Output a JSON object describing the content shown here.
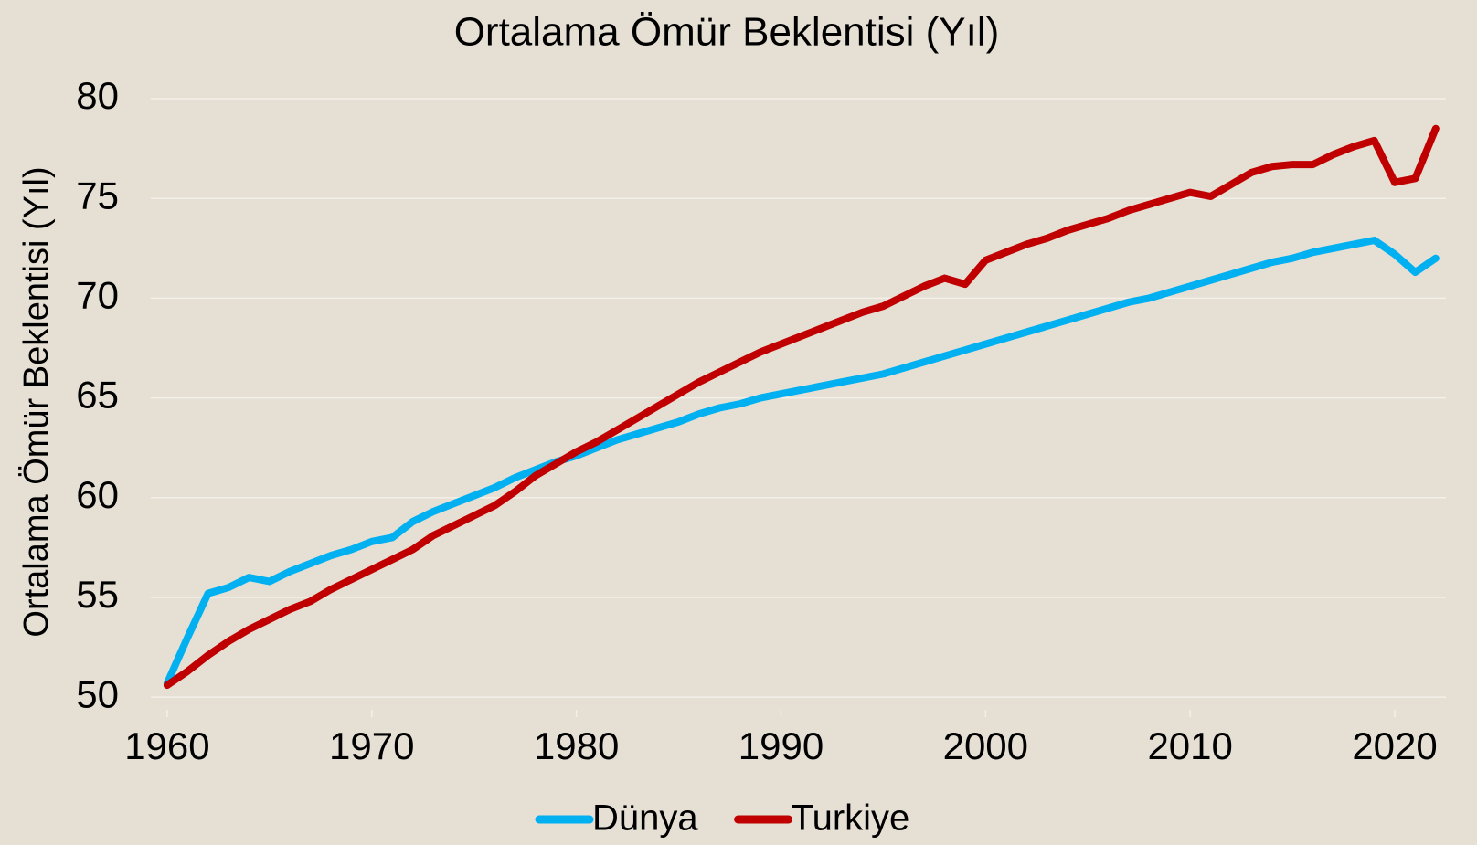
{
  "chart_data": {
    "type": "line",
    "title": "Ortalama Ömür Beklentisi (Yıl)",
    "y_label": "Ortalama Ömür Beklentisi (Yıl)",
    "x": [
      1960,
      1961,
      1962,
      1963,
      1964,
      1965,
      1966,
      1967,
      1968,
      1969,
      1970,
      1971,
      1972,
      1973,
      1974,
      1975,
      1976,
      1977,
      1978,
      1979,
      1980,
      1981,
      1982,
      1983,
      1984,
      1985,
      1986,
      1987,
      1988,
      1989,
      1990,
      1991,
      1992,
      1993,
      1994,
      1995,
      1996,
      1997,
      1998,
      1999,
      2000,
      2001,
      2002,
      2003,
      2004,
      2005,
      2006,
      2007,
      2008,
      2009,
      2010,
      2011,
      2012,
      2013,
      2014,
      2015,
      2016,
      2017,
      2018,
      2019,
      2020,
      2021,
      2022
    ],
    "series": [
      {
        "name": "Dünya",
        "color": "#00b0f0",
        "values": [
          50.7,
          53.0,
          55.2,
          55.5,
          56.0,
          55.8,
          56.3,
          56.7,
          57.1,
          57.4,
          57.8,
          58.0,
          58.8,
          59.3,
          59.7,
          60.1,
          60.5,
          61.0,
          61.4,
          61.8,
          62.1,
          62.5,
          62.9,
          63.2,
          63.5,
          63.8,
          64.2,
          64.5,
          64.7,
          65.0,
          65.2,
          65.4,
          65.6,
          65.8,
          66.0,
          66.2,
          66.5,
          66.8,
          67.1,
          67.4,
          67.7,
          68.0,
          68.3,
          68.6,
          68.9,
          69.2,
          69.5,
          69.8,
          70.0,
          70.3,
          70.6,
          70.9,
          71.2,
          71.5,
          71.8,
          72.0,
          72.3,
          72.5,
          72.7,
          72.9,
          72.2,
          71.3,
          72.0
        ]
      },
      {
        "name": "Turkiye",
        "color": "#c00000",
        "values": [
          50.6,
          51.3,
          52.1,
          52.8,
          53.4,
          53.9,
          54.4,
          54.8,
          55.4,
          55.9,
          56.4,
          56.9,
          57.4,
          58.1,
          58.6,
          59.1,
          59.6,
          60.3,
          61.1,
          61.7,
          62.3,
          62.8,
          63.4,
          64.0,
          64.6,
          65.2,
          65.8,
          66.3,
          66.8,
          67.3,
          67.7,
          68.1,
          68.5,
          68.9,
          69.3,
          69.6,
          70.1,
          70.6,
          71.0,
          70.7,
          71.9,
          72.3,
          72.7,
          73.0,
          73.4,
          73.7,
          74.0,
          74.4,
          74.7,
          75.0,
          75.3,
          75.1,
          75.7,
          76.3,
          76.6,
          76.7,
          76.7,
          77.2,
          77.6,
          77.9,
          75.8,
          76.0,
          78.5
        ]
      }
    ],
    "xlim": [
      1959.2,
      2022.5
    ],
    "xticks": [
      1960,
      1970,
      1980,
      1990,
      2000,
      2010,
      2020
    ],
    "ylim": [
      49,
      80
    ],
    "yticks": [
      50,
      55,
      60,
      65,
      70,
      75,
      80
    ],
    "grid": true,
    "legend": "bottom"
  }
}
